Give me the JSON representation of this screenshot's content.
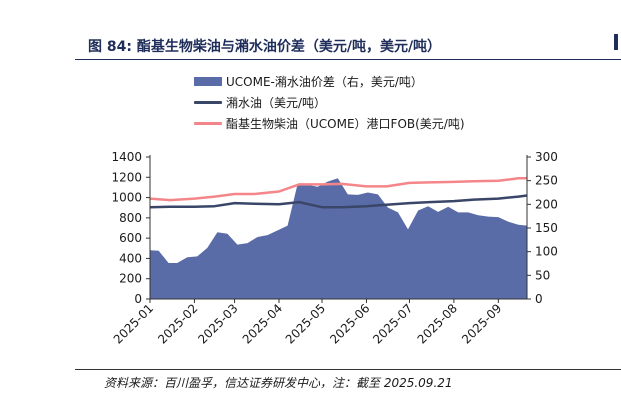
{
  "figure": {
    "title": "图 84:  酯基生物柴油与潲水油价差（美元/吨，美元/吨）",
    "source": "资料来源：百川盈孚，信达证券研发中心，注：截至 2025.09.21"
  },
  "legend": {
    "items": [
      {
        "label": "UCOME-潲水油价差（右，美元/吨）",
        "kind": "bar"
      },
      {
        "label": "潲水油（美元/吨）",
        "kind": "line"
      },
      {
        "label": "酯基生物柴油（UCOME）港口FOB(美元/吨)",
        "kind": "line"
      }
    ]
  },
  "colors": {
    "spread_area": "#5a6ca8",
    "uco_line": "#3a4668",
    "ucome_line": "#f4868a",
    "title": "#1f2d5a"
  },
  "chart_data": {
    "type": "line",
    "left_axis": {
      "min": 0,
      "max": 1400,
      "ticks": [
        "0",
        "200",
        "400",
        "600",
        "800",
        "1000",
        "1200",
        "1400"
      ]
    },
    "right_axis": {
      "min": 0,
      "max": 300,
      "ticks": [
        "0",
        "50",
        "100",
        "150",
        "200",
        "250",
        "300"
      ]
    },
    "x_range": [
      "2025-01-01",
      "2025-09-21"
    ],
    "x_ticks": [
      "2025-01",
      "2025-02",
      "2025-03",
      "2025-04",
      "2025-05",
      "2025-06",
      "2025-07",
      "2025-08",
      "2025-09"
    ],
    "grid": false,
    "legend_position": "top",
    "series": [
      {
        "name": "UCOME-潲水油价差（右，美元/吨）",
        "type": "area",
        "axis": "right",
        "x": [
          "2025-01-01",
          "2025-01-07",
          "2025-01-14",
          "2025-01-20",
          "2025-01-27",
          "2025-02-03",
          "2025-02-10",
          "2025-02-17",
          "2025-02-24",
          "2025-03-03",
          "2025-03-10",
          "2025-03-17",
          "2025-03-24",
          "2025-03-31",
          "2025-04-07",
          "2025-04-14",
          "2025-04-21",
          "2025-04-28",
          "2025-05-05",
          "2025-05-12",
          "2025-05-19",
          "2025-05-26",
          "2025-06-02",
          "2025-06-09",
          "2025-06-16",
          "2025-06-23",
          "2025-06-30",
          "2025-07-07",
          "2025-07-14",
          "2025-07-21",
          "2025-07-28",
          "2025-08-04",
          "2025-08-11",
          "2025-08-18",
          "2025-08-25",
          "2025-09-01",
          "2025-09-08",
          "2025-09-15",
          "2025-09-21"
        ],
        "values": [
          103,
          102,
          76,
          76,
          88,
          90,
          108,
          141,
          138,
          115,
          118,
          131,
          135,
          145,
          155,
          243,
          241,
          237,
          248,
          255,
          221,
          220,
          225,
          221,
          193,
          183,
          147,
          187,
          196,
          184,
          195,
          183,
          183,
          177,
          174,
          173,
          163,
          157,
          155
        ]
      },
      {
        "name": "潲水油（美元/吨）",
        "type": "line",
        "axis": "left",
        "x": [
          "2025-01-01",
          "2025-01-15",
          "2025-02-01",
          "2025-02-15",
          "2025-03-01",
          "2025-03-15",
          "2025-04-01",
          "2025-04-15",
          "2025-05-01",
          "2025-05-15",
          "2025-06-01",
          "2025-06-15",
          "2025-07-01",
          "2025-07-15",
          "2025-08-01",
          "2025-08-15",
          "2025-09-01",
          "2025-09-15",
          "2025-09-21"
        ],
        "values": [
          905,
          910,
          910,
          915,
          945,
          940,
          935,
          955,
          905,
          905,
          915,
          930,
          945,
          955,
          965,
          980,
          990,
          1010,
          1020
        ]
      },
      {
        "name": "酯基生物柴油（UCOME）港口FOB(美元/吨)",
        "type": "line",
        "axis": "left",
        "x": [
          "2025-01-01",
          "2025-01-15",
          "2025-02-01",
          "2025-02-15",
          "2025-03-01",
          "2025-03-15",
          "2025-04-01",
          "2025-04-15",
          "2025-05-01",
          "2025-05-15",
          "2025-06-01",
          "2025-06-15",
          "2025-07-01",
          "2025-07-15",
          "2025-08-01",
          "2025-08-15",
          "2025-09-01",
          "2025-09-15",
          "2025-09-21"
        ],
        "values": [
          990,
          975,
          990,
          1010,
          1035,
          1035,
          1060,
          1130,
          1130,
          1135,
          1110,
          1110,
          1145,
          1150,
          1155,
          1160,
          1165,
          1190,
          1190
        ]
      }
    ]
  }
}
